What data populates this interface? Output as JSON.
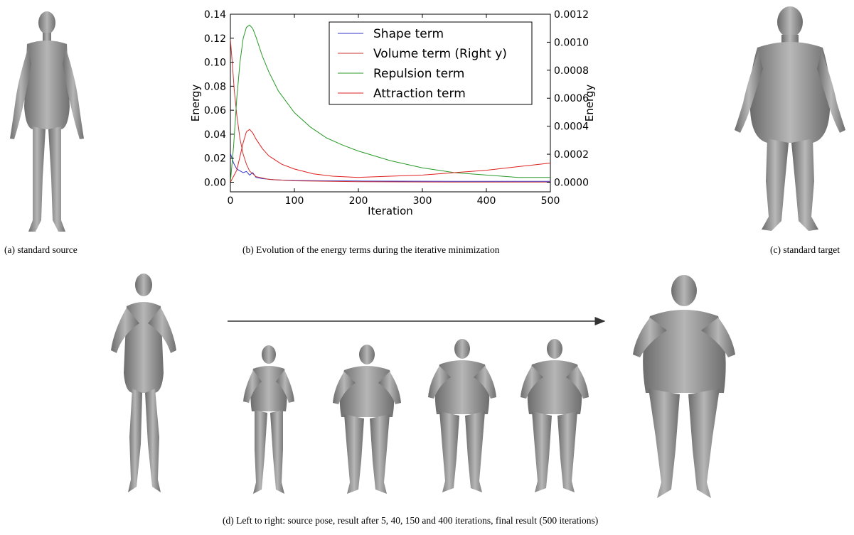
{
  "captions": {
    "a": "(a) standard source",
    "b": "(b) Evolution of the energy terms during the iterative minimization",
    "c": "(c) standard target",
    "d": "(d) Left to right: source pose, result after 5, 40, 150 and 400 iterations, final result (500 iterations)"
  },
  "figures": {
    "a": "figure-a-standard-source",
    "c": "figure-c-standard-target",
    "d": [
      "source-pose",
      "iteration-5",
      "iteration-40",
      "iteration-150",
      "iteration-400",
      "final-result"
    ]
  },
  "chart_data": {
    "type": "line",
    "title": "",
    "xlabel": "Iteration",
    "ylabel": "Energy",
    "ylabel_right": "Energy",
    "xlim": [
      0,
      500
    ],
    "ylim": [
      -0.008,
      0.14
    ],
    "ylim_right": [
      -6.86e-05,
      0.0012
    ],
    "x_ticks": [
      "0",
      "100",
      "200",
      "300",
      "400",
      "500"
    ],
    "y_ticks": [
      "0.00",
      "0.02",
      "0.04",
      "0.06",
      "0.08",
      "0.10",
      "0.12",
      "0.14"
    ],
    "y_ticks_right": [
      "0.0000",
      "0.0002",
      "0.0004",
      "0.0006",
      "0.0008",
      "0.0010",
      "0.0012"
    ],
    "legend_position": "top-right",
    "grid": false,
    "series": [
      {
        "name": "Shape term",
        "color": "#3333cc",
        "axis": "left",
        "points": [
          [
            0,
            0.024
          ],
          [
            5,
            0.016
          ],
          [
            10,
            0.011
          ],
          [
            15,
            0.0095
          ],
          [
            20,
            0.008
          ],
          [
            25,
            0.009
          ],
          [
            30,
            0.006
          ],
          [
            35,
            0.008
          ],
          [
            40,
            0.004
          ],
          [
            50,
            0.003
          ],
          [
            70,
            0.002
          ],
          [
            100,
            0.0015
          ],
          [
            150,
            0.0012
          ],
          [
            200,
            0.001
          ],
          [
            300,
            0.0008
          ],
          [
            400,
            0.0007
          ],
          [
            500,
            0.0007
          ]
        ]
      },
      {
        "name": "Volume term (Right y)",
        "color": "#cc3333",
        "axis": "right",
        "points": [
          [
            0,
            0.00102
          ],
          [
            3,
            0.00085
          ],
          [
            6,
            0.00066
          ],
          [
            10,
            0.00048
          ],
          [
            15,
            0.00031
          ],
          [
            20,
            0.0002
          ],
          [
            25,
            0.00013
          ],
          [
            30,
            8e-05
          ],
          [
            40,
            4e-05
          ],
          [
            60,
            2e-05
          ],
          [
            100,
            1e-05
          ],
          [
            200,
            4e-06
          ],
          [
            300,
            2e-06
          ],
          [
            400,
            1e-06
          ],
          [
            500,
            1e-06
          ]
        ]
      },
      {
        "name": "Repulsion term",
        "color": "#2a9a2a",
        "axis": "left",
        "points": [
          [
            0,
            0.0
          ],
          [
            5,
            0.03
          ],
          [
            10,
            0.07
          ],
          [
            15,
            0.1
          ],
          [
            20,
            0.12
          ],
          [
            25,
            0.129
          ],
          [
            30,
            0.131
          ],
          [
            35,
            0.128
          ],
          [
            40,
            0.121
          ],
          [
            50,
            0.105
          ],
          [
            60,
            0.092
          ],
          [
            75,
            0.076
          ],
          [
            100,
            0.058
          ],
          [
            125,
            0.046
          ],
          [
            150,
            0.037
          ],
          [
            175,
            0.031
          ],
          [
            200,
            0.026
          ],
          [
            250,
            0.018
          ],
          [
            300,
            0.012
          ],
          [
            350,
            0.008
          ],
          [
            400,
            0.006
          ],
          [
            450,
            0.004
          ],
          [
            500,
            0.004
          ]
        ]
      },
      {
        "name": "Attraction term",
        "color": "#e02020",
        "axis": "left",
        "points": [
          [
            0,
            0.0
          ],
          [
            10,
            0.01
          ],
          [
            20,
            0.033
          ],
          [
            25,
            0.042
          ],
          [
            30,
            0.044
          ],
          [
            35,
            0.041
          ],
          [
            40,
            0.036
          ],
          [
            50,
            0.028
          ],
          [
            60,
            0.022
          ],
          [
            80,
            0.015
          ],
          [
            100,
            0.011
          ],
          [
            130,
            0.007
          ],
          [
            160,
            0.005
          ],
          [
            200,
            0.004
          ],
          [
            250,
            0.005
          ],
          [
            300,
            0.006
          ],
          [
            350,
            0.008
          ],
          [
            400,
            0.01
          ],
          [
            450,
            0.013
          ],
          [
            500,
            0.016
          ]
        ]
      }
    ]
  }
}
